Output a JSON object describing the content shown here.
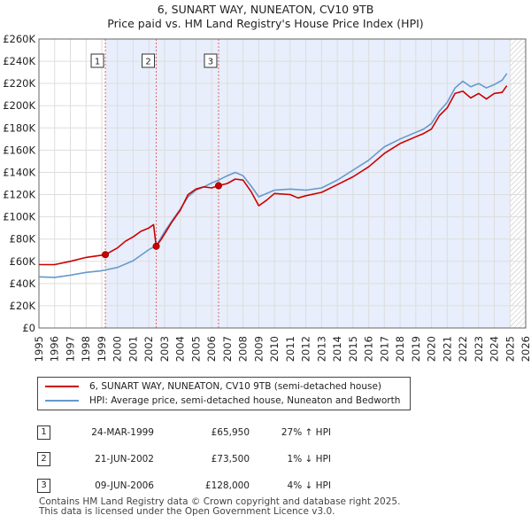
{
  "title_line1": "6, SUNART WAY, NUNEATON, CV10 9TB",
  "title_line2": "Price paid vs. HM Land Registry's House Price Index (HPI)",
  "chart_data": {
    "type": "line",
    "x_range": [
      1995,
      2026
    ],
    "ylim": [
      0,
      260000
    ],
    "y_ticks": [
      0,
      20000,
      40000,
      60000,
      80000,
      100000,
      120000,
      140000,
      160000,
      180000,
      200000,
      220000,
      240000,
      260000
    ],
    "y_tick_labels": [
      "£0",
      "£20K",
      "£40K",
      "£60K",
      "£80K",
      "£100K",
      "£120K",
      "£140K",
      "£160K",
      "£180K",
      "£200K",
      "£220K",
      "£240K",
      "£260K"
    ],
    "x_tick_labels": [
      "1995",
      "1996",
      "1997",
      "1998",
      "1999",
      "2000",
      "2001",
      "2002",
      "2003",
      "2004",
      "2005",
      "2006",
      "2007",
      "2008",
      "2009",
      "2010",
      "2011",
      "2012",
      "2013",
      "2014",
      "2015",
      "2016",
      "2017",
      "2018",
      "2019",
      "2020",
      "2021",
      "2022",
      "2023",
      "2024",
      "2025",
      "2026"
    ],
    "grid": true,
    "data_end_year": 2025.0,
    "series": [
      {
        "name": "6, SUNART WAY, NUNEATON, CV10 9TB (semi-detached house)",
        "color": "#cc0000",
        "points": [
          [
            1995.0,
            57000
          ],
          [
            1996.0,
            57000
          ],
          [
            1997.0,
            60000
          ],
          [
            1998.0,
            63500
          ],
          [
            1999.23,
            65950
          ],
          [
            2000.0,
            72000
          ],
          [
            2000.5,
            78000
          ],
          [
            2001.0,
            82000
          ],
          [
            2001.5,
            87000
          ],
          [
            2002.0,
            90000
          ],
          [
            2002.3,
            93000
          ],
          [
            2002.47,
            73500
          ],
          [
            2002.8,
            80000
          ],
          [
            2003.5,
            96000
          ],
          [
            2004.0,
            106000
          ],
          [
            2004.5,
            120000
          ],
          [
            2005.0,
            125000
          ],
          [
            2005.5,
            127000
          ],
          [
            2006.0,
            126000
          ],
          [
            2006.44,
            128000
          ],
          [
            2007.0,
            130000
          ],
          [
            2007.5,
            134000
          ],
          [
            2008.0,
            133000
          ],
          [
            2008.5,
            123000
          ],
          [
            2009.0,
            110000
          ],
          [
            2009.5,
            115000
          ],
          [
            2010.0,
            121000
          ],
          [
            2011.0,
            120000
          ],
          [
            2011.5,
            117000
          ],
          [
            2012.0,
            119000
          ],
          [
            2013.0,
            122000
          ],
          [
            2014.0,
            129000
          ],
          [
            2015.0,
            136000
          ],
          [
            2016.0,
            145000
          ],
          [
            2017.0,
            157000
          ],
          [
            2018.0,
            166000
          ],
          [
            2019.0,
            172000
          ],
          [
            2019.5,
            175000
          ],
          [
            2020.0,
            179000
          ],
          [
            2020.5,
            191000
          ],
          [
            2021.0,
            198000
          ],
          [
            2021.5,
            211000
          ],
          [
            2022.0,
            213000
          ],
          [
            2022.5,
            207000
          ],
          [
            2023.0,
            211000
          ],
          [
            2023.5,
            206000
          ],
          [
            2024.0,
            211000
          ],
          [
            2024.5,
            212000
          ],
          [
            2024.8,
            218000
          ]
        ]
      },
      {
        "name": "HPI: Average price, semi-detached house, Nuneaton and Bedworth",
        "color": "#6699cc",
        "points": [
          [
            1995.0,
            46000
          ],
          [
            1996.0,
            45500
          ],
          [
            1997.0,
            47500
          ],
          [
            1998.0,
            50000
          ],
          [
            1999.0,
            51500
          ],
          [
            2000.0,
            54500
          ],
          [
            2001.0,
            60500
          ],
          [
            2002.0,
            70500
          ],
          [
            2002.47,
            74000
          ],
          [
            2003.0,
            86500
          ],
          [
            2003.5,
            97000
          ],
          [
            2004.0,
            107000
          ],
          [
            2004.5,
            118000
          ],
          [
            2005.0,
            124000
          ],
          [
            2005.5,
            127000
          ],
          [
            2006.0,
            130500
          ],
          [
            2006.44,
            133000
          ],
          [
            2007.0,
            137000
          ],
          [
            2007.5,
            140000
          ],
          [
            2008.0,
            137000
          ],
          [
            2008.5,
            128000
          ],
          [
            2009.0,
            118000
          ],
          [
            2009.5,
            121000
          ],
          [
            2010.0,
            124000
          ],
          [
            2011.0,
            125000
          ],
          [
            2012.0,
            124000
          ],
          [
            2013.0,
            126000
          ],
          [
            2014.0,
            133000
          ],
          [
            2015.0,
            142000
          ],
          [
            2016.0,
            151000
          ],
          [
            2017.0,
            163000
          ],
          [
            2018.0,
            170000
          ],
          [
            2019.0,
            176000
          ],
          [
            2019.5,
            179000
          ],
          [
            2020.0,
            184000
          ],
          [
            2020.5,
            195000
          ],
          [
            2021.0,
            203000
          ],
          [
            2021.5,
            216000
          ],
          [
            2022.0,
            222000
          ],
          [
            2022.5,
            217000
          ],
          [
            2023.0,
            220000
          ],
          [
            2023.5,
            216000
          ],
          [
            2024.0,
            219000
          ],
          [
            2024.5,
            223000
          ],
          [
            2024.8,
            229000
          ]
        ]
      }
    ],
    "sales": [
      {
        "marker": "1",
        "x": 1999.23,
        "price": 65950,
        "date": "24-MAR-1999",
        "price_label": "£65,950",
        "hpi_label": "27% ↑ HPI"
      },
      {
        "marker": "2",
        "x": 2002.47,
        "price": 73500,
        "date": "21-JUN-2002",
        "price_label": "£73,500",
        "hpi_label": "1% ↓ HPI"
      },
      {
        "marker": "3",
        "x": 2006.44,
        "price": 128000,
        "date": "09-JUN-2006",
        "price_label": "£128,000",
        "hpi_label": "4% ↓ HPI"
      }
    ]
  },
  "legend": {
    "entry1": "6, SUNART WAY, NUNEATON, CV10 9TB (semi-detached house)",
    "entry2": "HPI: Average price, semi-detached house, Nuneaton and Bedworth"
  },
  "footer": {
    "line1": "Contains HM Land Registry data © Crown copyright and database right 2025.",
    "line2": "This data is licensed under the Open Government Licence v3.0."
  }
}
